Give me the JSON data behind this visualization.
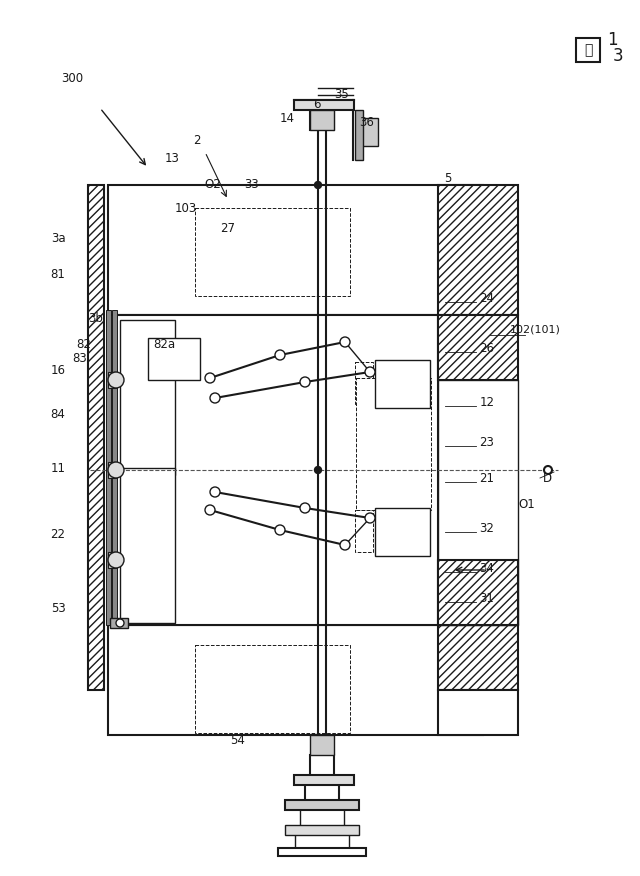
{
  "bg_color": "#ffffff",
  "line_color": "#1a1a1a",
  "fig_num": "図13",
  "labels": [
    [
      "300",
      72,
      78,
      8.5
    ],
    [
      "13",
      172,
      158,
      8.5
    ],
    [
      "2",
      197,
      140,
      8.5
    ],
    [
      "3a",
      58,
      238,
      8.5
    ],
    [
      "3b",
      96,
      318,
      8.5
    ],
    [
      "81",
      58,
      275,
      8.5
    ],
    [
      "82",
      84,
      345,
      8.5
    ],
    [
      "82a",
      164,
      345,
      8.5
    ],
    [
      "83",
      80,
      358,
      8.5
    ],
    [
      "16",
      58,
      370,
      8.5
    ],
    [
      "84",
      58,
      415,
      8.5
    ],
    [
      "11",
      58,
      468,
      8.5
    ],
    [
      "22",
      58,
      535,
      8.5
    ],
    [
      "53",
      58,
      608,
      8.5
    ],
    [
      "54",
      238,
      740,
      8.5
    ],
    [
      "103",
      186,
      208,
      8.5
    ],
    [
      "O2",
      213,
      185,
      8.5
    ],
    [
      "27",
      228,
      228,
      8.5
    ],
    [
      "33",
      252,
      185,
      8.5
    ],
    [
      "14",
      287,
      118,
      8.5
    ],
    [
      "6",
      317,
      105,
      8.5
    ],
    [
      "35",
      342,
      95,
      8.5
    ],
    [
      "36",
      367,
      122,
      8.5
    ],
    [
      "5",
      448,
      178,
      8.5
    ],
    [
      "24",
      487,
      298,
      8.5
    ],
    [
      "26",
      487,
      348,
      8.5
    ],
    [
      "102(101)",
      535,
      330,
      8.0
    ],
    [
      "12",
      487,
      402,
      8.5
    ],
    [
      "23",
      487,
      442,
      8.5
    ],
    [
      "21",
      487,
      478,
      8.5
    ],
    [
      "D",
      547,
      478,
      8.5
    ],
    [
      "O1",
      527,
      505,
      8.5
    ],
    [
      "32",
      487,
      528,
      8.5
    ],
    [
      "34",
      487,
      568,
      8.5
    ],
    [
      "31",
      487,
      598,
      8.5
    ]
  ]
}
